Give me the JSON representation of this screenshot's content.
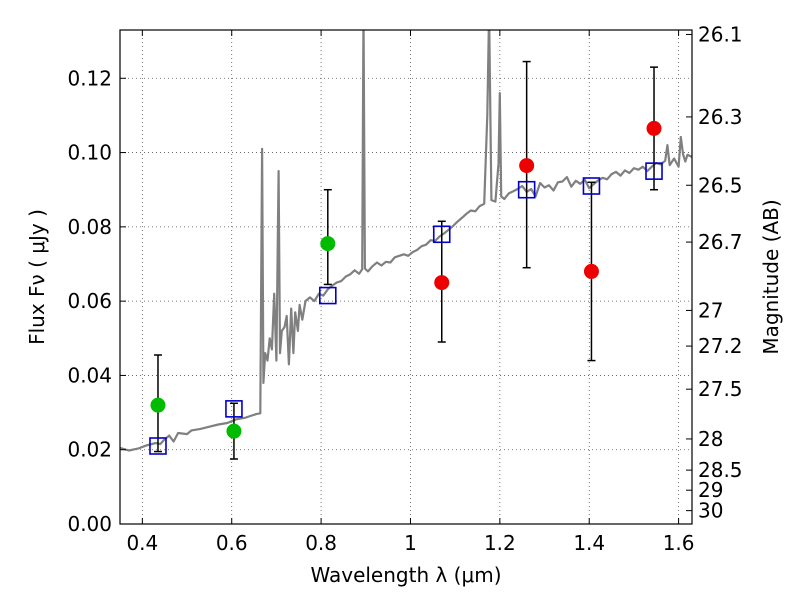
{
  "chart_data": {
    "type": "scatter",
    "title": "",
    "xlabel": "Wavelength  λ (μm)",
    "ylabel_left": "Flux  Fν  ( μJy )",
    "ylabel_right": "Magnitude (AB)",
    "xlim": [
      0.35,
      1.63
    ],
    "ylim": [
      0.0,
      0.133
    ],
    "grid": true,
    "x_ticks": [
      0.4,
      0.6,
      0.8,
      1.0,
      1.2,
      1.4,
      1.6
    ],
    "x_tick_labels": [
      "0.4",
      "0.6",
      "0.8",
      "1",
      "1.2",
      "1.4",
      "1.6"
    ],
    "y_ticks": [
      0.0,
      0.02,
      0.04,
      0.06,
      0.08,
      0.1,
      0.12
    ],
    "y_tick_labels": [
      "0.00",
      "0.02",
      "0.04",
      "0.06",
      "0.08",
      "0.10",
      "0.12"
    ],
    "mag_ticks": [
      {
        "label": "26.1",
        "flux": 0.1318
      },
      {
        "label": "26.3",
        "flux": 0.1096
      },
      {
        "label": "26.5",
        "flux": 0.0912
      },
      {
        "label": "26.7",
        "flux": 0.0759
      },
      {
        "label": "27",
        "flux": 0.0575
      },
      {
        "label": "27.2",
        "flux": 0.0479
      },
      {
        "label": "27.5",
        "flux": 0.0363
      },
      {
        "label": "28",
        "flux": 0.0229
      },
      {
        "label": "28.5",
        "flux": 0.0145
      },
      {
        "label": "29",
        "flux": 0.0091
      },
      {
        "label": "30",
        "flux": 0.0036
      }
    ],
    "series": [
      {
        "name": "model spectrum",
        "kind": "line",
        "color": "#808080",
        "points": [
          [
            0.35,
            0.0205
          ],
          [
            0.37,
            0.0198
          ],
          [
            0.39,
            0.0203
          ],
          [
            0.41,
            0.0212
          ],
          [
            0.43,
            0.0218
          ],
          [
            0.44,
            0.0215
          ],
          [
            0.45,
            0.0228
          ],
          [
            0.46,
            0.0238
          ],
          [
            0.47,
            0.0222
          ],
          [
            0.48,
            0.0245
          ],
          [
            0.5,
            0.0242
          ],
          [
            0.51,
            0.0252
          ],
          [
            0.53,
            0.0256
          ],
          [
            0.55,
            0.0262
          ],
          [
            0.57,
            0.0268
          ],
          [
            0.59,
            0.0272
          ],
          [
            0.61,
            0.0282
          ],
          [
            0.63,
            0.0286
          ],
          [
            0.645,
            0.0292
          ],
          [
            0.655,
            0.0296
          ],
          [
            0.664,
            0.0298
          ],
          [
            0.668,
            0.101
          ],
          [
            0.671,
            0.038
          ],
          [
            0.675,
            0.046
          ],
          [
            0.68,
            0.044
          ],
          [
            0.685,
            0.05
          ],
          [
            0.69,
            0.047
          ],
          [
            0.695,
            0.062
          ],
          [
            0.7,
            0.044
          ],
          [
            0.705,
            0.095
          ],
          [
            0.708,
            0.046
          ],
          [
            0.712,
            0.052
          ],
          [
            0.718,
            0.053
          ],
          [
            0.723,
            0.056
          ],
          [
            0.728,
            0.043
          ],
          [
            0.733,
            0.058
          ],
          [
            0.738,
            0.046
          ],
          [
            0.742,
            0.057
          ],
          [
            0.748,
            0.052
          ],
          [
            0.752,
            0.059
          ],
          [
            0.758,
            0.055
          ],
          [
            0.765,
            0.06
          ],
          [
            0.775,
            0.061
          ],
          [
            0.785,
            0.06
          ],
          [
            0.795,
            0.062
          ],
          [
            0.805,
            0.0615
          ],
          [
            0.815,
            0.0632
          ],
          [
            0.825,
            0.0642
          ],
          [
            0.835,
            0.065
          ],
          [
            0.845,
            0.0654
          ],
          [
            0.855,
            0.0666
          ],
          [
            0.865,
            0.0672
          ],
          [
            0.875,
            0.0683
          ],
          [
            0.885,
            0.0674
          ],
          [
            0.892,
            0.0686
          ],
          [
            0.895,
            0.138
          ],
          [
            0.898,
            0.0688
          ],
          [
            0.905,
            0.068
          ],
          [
            0.915,
            0.0694
          ],
          [
            0.925,
            0.0704
          ],
          [
            0.935,
            0.0696
          ],
          [
            0.945,
            0.0706
          ],
          [
            0.955,
            0.0704
          ],
          [
            0.965,
            0.0718
          ],
          [
            0.975,
            0.0722
          ],
          [
            0.985,
            0.0726
          ],
          [
            0.995,
            0.0722
          ],
          [
            1.005,
            0.0732
          ],
          [
            1.015,
            0.0738
          ],
          [
            1.025,
            0.0748
          ],
          [
            1.035,
            0.0752
          ],
          [
            1.045,
            0.0764
          ],
          [
            1.055,
            0.0762
          ],
          [
            1.065,
            0.0774
          ],
          [
            1.075,
            0.0782
          ],
          [
            1.085,
            0.0792
          ],
          [
            1.095,
            0.0802
          ],
          [
            1.105,
            0.0814
          ],
          [
            1.115,
            0.0824
          ],
          [
            1.125,
            0.0835
          ],
          [
            1.135,
            0.0844
          ],
          [
            1.145,
            0.0842
          ],
          [
            1.155,
            0.0856
          ],
          [
            1.165,
            0.0862
          ],
          [
            1.172,
            0.11
          ],
          [
            1.176,
            0.138
          ],
          [
            1.181,
            0.0872
          ],
          [
            1.19,
            0.0868
          ],
          [
            1.197,
            0.097
          ],
          [
            1.2,
            0.116
          ],
          [
            1.203,
            0.0882
          ],
          [
            1.21,
            0.0875
          ],
          [
            1.22,
            0.089
          ],
          [
            1.23,
            0.0896
          ],
          [
            1.24,
            0.0902
          ],
          [
            1.25,
            0.091
          ],
          [
            1.26,
            0.0894
          ],
          [
            1.27,
            0.0902
          ],
          [
            1.28,
            0.0882
          ],
          [
            1.29,
            0.0918
          ],
          [
            1.3,
            0.0906
          ],
          [
            1.31,
            0.0912
          ],
          [
            1.32,
            0.0898
          ],
          [
            1.33,
            0.092
          ],
          [
            1.34,
            0.0922
          ],
          [
            1.35,
            0.0934
          ],
          [
            1.36,
            0.0908
          ],
          [
            1.37,
            0.0924
          ],
          [
            1.38,
            0.0916
          ],
          [
            1.39,
            0.0927
          ],
          [
            1.4,
            0.0904
          ],
          [
            1.41,
            0.0915
          ],
          [
            1.42,
            0.0925
          ],
          [
            1.43,
            0.0932
          ],
          [
            1.44,
            0.0928
          ],
          [
            1.45,
            0.0942
          ],
          [
            1.46,
            0.0948
          ],
          [
            1.47,
            0.0938
          ],
          [
            1.48,
            0.0952
          ],
          [
            1.49,
            0.0945
          ],
          [
            1.5,
            0.0958
          ],
          [
            1.51,
            0.0954
          ],
          [
            1.52,
            0.0962
          ],
          [
            1.53,
            0.095
          ],
          [
            1.54,
            0.0962
          ],
          [
            1.55,
            0.0972
          ],
          [
            1.56,
            0.0968
          ],
          [
            1.57,
            0.0978
          ],
          [
            1.575,
            0.102
          ],
          [
            1.58,
            0.0966
          ],
          [
            1.59,
            0.0984
          ],
          [
            1.6,
            0.0962
          ],
          [
            1.605,
            0.1042
          ],
          [
            1.61,
            0.0995
          ],
          [
            1.615,
            0.0976
          ],
          [
            1.62,
            0.0994
          ],
          [
            1.63,
            0.0988
          ]
        ]
      },
      {
        "name": "model band fluxes",
        "kind": "open-square",
        "color": "#0000cc",
        "x": [
          0.435,
          0.605,
          0.815,
          1.07,
          1.26,
          1.405,
          1.545
        ],
        "y": [
          0.021,
          0.031,
          0.0615,
          0.078,
          0.09,
          0.091,
          0.095
        ]
      },
      {
        "name": "observed (green)",
        "kind": "point",
        "color": "#00bb00",
        "x": [
          0.435,
          0.605,
          0.815
        ],
        "y": [
          0.032,
          0.025,
          0.0755
        ],
        "err_low": [
          0.0125,
          0.0075,
          0.011
        ],
        "err_high": [
          0.0135,
          0.0075,
          0.0145
        ]
      },
      {
        "name": "observed (red)",
        "kind": "point",
        "color": "#ee0000",
        "x": [
          1.07,
          1.26,
          1.405,
          1.545
        ],
        "y": [
          0.065,
          0.0965,
          0.068,
          0.1065
        ],
        "err_low": [
          0.016,
          0.0275,
          0.024,
          0.0165
        ],
        "err_high": [
          0.0165,
          0.028,
          0.024,
          0.0165
        ]
      }
    ]
  }
}
